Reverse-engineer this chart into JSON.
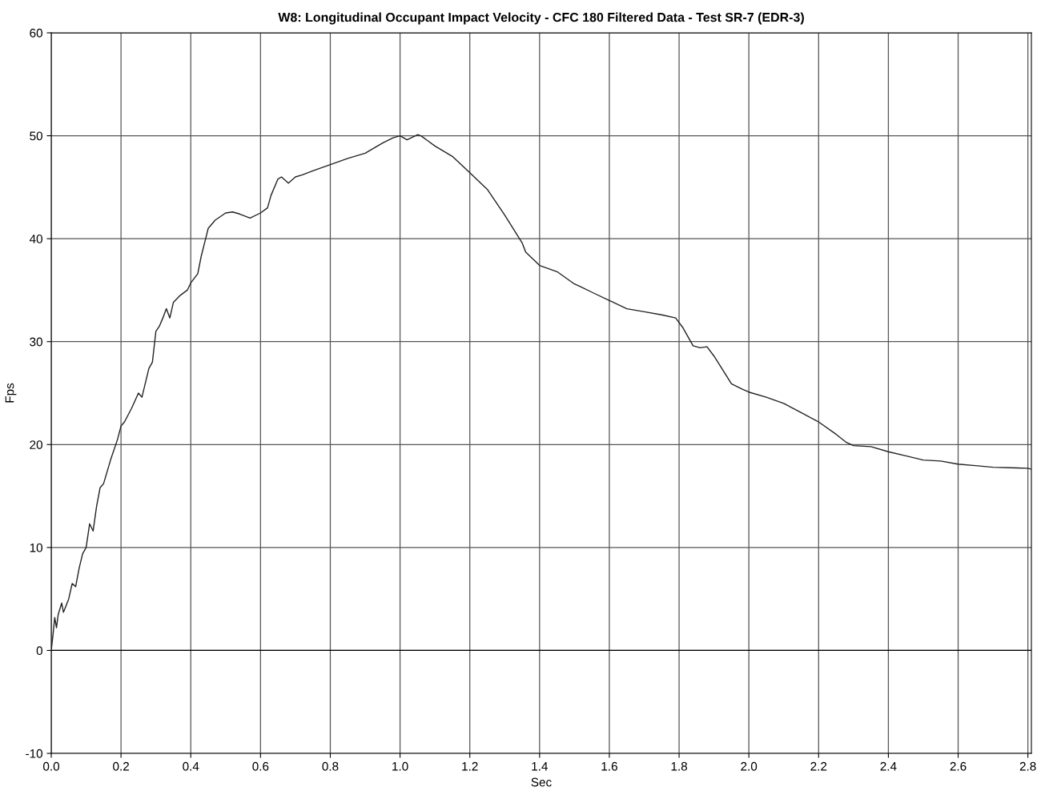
{
  "chart_data": {
    "type": "line",
    "title": "W8: Longitudinal Occupant Impact Velocity - CFC 180 Filtered Data - Test SR-7 (EDR-3)",
    "xlabel": "Sec",
    "ylabel": "Fps",
    "xlim": [
      0,
      2.81
    ],
    "ylim": [
      -10,
      60
    ],
    "xticks": [
      {
        "value": 0,
        "label": "0.0"
      },
      {
        "value": 0.2,
        "label": "0.2"
      },
      {
        "value": 0.4,
        "label": "0.4"
      },
      {
        "value": 0.6,
        "label": "0.6"
      },
      {
        "value": 0.8,
        "label": "0.8"
      },
      {
        "value": 1.0,
        "label": "1.0"
      },
      {
        "value": 1.2,
        "label": "1.2"
      },
      {
        "value": 1.4,
        "label": "1.4"
      },
      {
        "value": 1.6,
        "label": "1.6"
      },
      {
        "value": 1.8,
        "label": "1.8"
      },
      {
        "value": 2.0,
        "label": "2.0"
      },
      {
        "value": 2.2,
        "label": "2.2"
      },
      {
        "value": 2.4,
        "label": "2.4"
      },
      {
        "value": 2.6,
        "label": "2.6"
      },
      {
        "value": 2.8,
        "label": "2.8"
      }
    ],
    "yticks": [
      -10,
      0,
      10,
      20,
      30,
      40,
      50,
      60
    ],
    "grid": true,
    "ref_lines": [
      {
        "axis": "y",
        "value": 0,
        "color": "#000000"
      }
    ],
    "series": [
      {
        "color": "#222222",
        "x": [
          0.0,
          0.005,
          0.01,
          0.015,
          0.02,
          0.03,
          0.035,
          0.05,
          0.06,
          0.07,
          0.08,
          0.09,
          0.1,
          0.11,
          0.12,
          0.13,
          0.14,
          0.15,
          0.17,
          0.19,
          0.2,
          0.21,
          0.23,
          0.25,
          0.26,
          0.28,
          0.29,
          0.3,
          0.31,
          0.32,
          0.33,
          0.34,
          0.35,
          0.37,
          0.39,
          0.4,
          0.42,
          0.43,
          0.45,
          0.47,
          0.5,
          0.52,
          0.54,
          0.57,
          0.6,
          0.62,
          0.63,
          0.65,
          0.66,
          0.68,
          0.7,
          0.72,
          0.75,
          0.8,
          0.85,
          0.9,
          0.95,
          0.98,
          1.0,
          1.02,
          1.05,
          1.06,
          1.08,
          1.1,
          1.15,
          1.2,
          1.25,
          1.3,
          1.35,
          1.36,
          1.4,
          1.45,
          1.5,
          1.52,
          1.55,
          1.6,
          1.65,
          1.7,
          1.75,
          1.79,
          1.81,
          1.84,
          1.86,
          1.88,
          1.9,
          1.93,
          1.95,
          1.98,
          2.0,
          2.05,
          2.1,
          2.15,
          2.2,
          2.25,
          2.28,
          2.3,
          2.35,
          2.4,
          2.45,
          2.5,
          2.55,
          2.6,
          2.65,
          2.7,
          2.75,
          2.8,
          2.81
        ],
        "values": [
          0,
          1.5,
          3.2,
          2.2,
          3.5,
          4.6,
          3.7,
          5,
          6.5,
          6.2,
          8,
          9.4,
          10,
          12.3,
          11.6,
          14,
          15.8,
          16.2,
          18.5,
          20.5,
          21.8,
          22.2,
          23.5,
          25,
          24.6,
          27.4,
          28,
          31,
          31.5,
          32.3,
          33.2,
          32.3,
          33.8,
          34.5,
          35,
          35.7,
          36.6,
          38.3,
          41,
          41.8,
          42.5,
          42.6,
          42.4,
          42.0,
          42.5,
          43,
          44.2,
          45.8,
          46,
          45.4,
          46,
          46.2,
          46.6,
          47.2,
          47.8,
          48.3,
          49.3,
          49.8,
          50,
          49.6,
          50.1,
          50,
          49.5,
          49,
          48,
          46.4,
          44.8,
          42.3,
          39.6,
          38.7,
          37.4,
          36.8,
          35.6,
          35.3,
          34.8,
          34,
          33.2,
          32.9,
          32.6,
          32.3,
          31.4,
          29.6,
          29.4,
          29.5,
          28.6,
          27,
          25.9,
          25.4,
          25.1,
          24.6,
          24.0,
          23.1,
          22.2,
          21.0,
          20.2,
          19.9,
          19.8,
          19.3,
          18.9,
          18.5,
          18.4,
          18.1,
          17.95,
          17.8,
          17.75,
          17.7,
          17.6
        ]
      }
    ]
  }
}
